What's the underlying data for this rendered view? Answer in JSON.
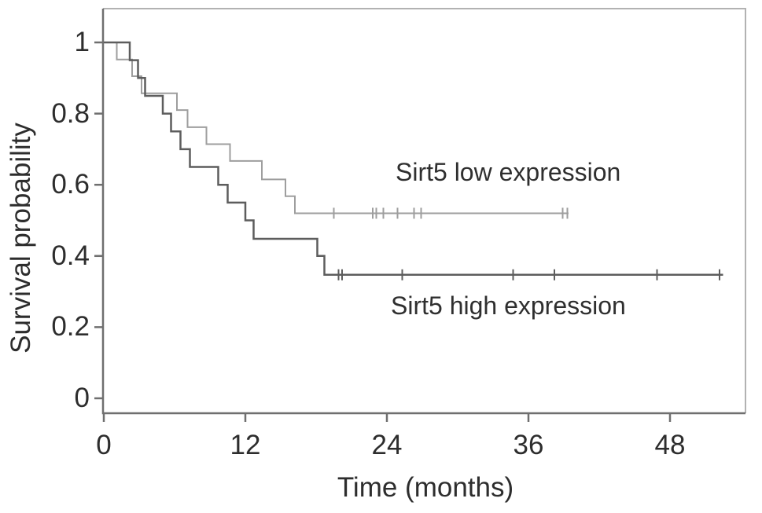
{
  "figure": {
    "x_axis_title": "Time (months)",
    "y_axis_title": "Survival probability",
    "series_label_low": "Sirt5 low expression",
    "series_label_high": "Sirt5 high expression"
  },
  "colors": {
    "background": "#ffffff",
    "frame_light": "#b2b2b2",
    "axis_dark": "#6f6f6f",
    "text": "#2d2d2d",
    "series_low": "#9e9e9e",
    "series_high": "#5d5d5d"
  },
  "chart_data": {
    "type": "line",
    "subtype": "kaplan-meier-step",
    "title": "",
    "xlabel": "Time (months)",
    "ylabel": "Survival probability",
    "xlim": [
      0,
      54.4
    ],
    "ylim": [
      -0.04,
      1.09
    ],
    "xticks": [
      "0",
      "12",
      "24",
      "36",
      "48"
    ],
    "xtick_values": [
      0,
      12,
      24,
      36,
      48
    ],
    "yticks": [
      "0",
      "0.2",
      "0.4",
      "0.6",
      "0.8",
      "1"
    ],
    "ytick_values": [
      0,
      0.2,
      0.4,
      0.6,
      0.8,
      1
    ],
    "grid": false,
    "legend_position": "inline-annotations",
    "series": [
      {
        "name": "Sirt5 low expression",
        "color": "#9e9e9e",
        "line_width": 2,
        "end_time": 39.4,
        "steps": [
          [
            0,
            1.0
          ],
          [
            1.1,
            0.952
          ],
          [
            2.4,
            0.905
          ],
          [
            3.2,
            0.857
          ],
          [
            6.2,
            0.81
          ],
          [
            7.1,
            0.762
          ],
          [
            8.7,
            0.714
          ],
          [
            10.7,
            0.667
          ],
          [
            13.4,
            0.615
          ],
          [
            15.4,
            0.568
          ],
          [
            16.2,
            0.52
          ]
        ],
        "censors": [
          [
            19.5,
            0.52
          ],
          [
            22.8,
            0.52
          ],
          [
            23.1,
            0.52
          ],
          [
            23.7,
            0.52
          ],
          [
            24.9,
            0.52
          ],
          [
            26.3,
            0.52
          ],
          [
            26.9,
            0.52
          ],
          [
            38.9,
            0.52
          ],
          [
            39.3,
            0.52
          ]
        ]
      },
      {
        "name": "Sirt5 high expression",
        "color": "#5d5d5d",
        "line_width": 2.5,
        "end_time": 52.5,
        "steps": [
          [
            0,
            1.0
          ],
          [
            2.2,
            0.95
          ],
          [
            2.9,
            0.9
          ],
          [
            3.5,
            0.85
          ],
          [
            5.0,
            0.8
          ],
          [
            5.7,
            0.75
          ],
          [
            6.5,
            0.7
          ],
          [
            7.3,
            0.65
          ],
          [
            9.7,
            0.6
          ],
          [
            10.5,
            0.55
          ],
          [
            12.0,
            0.5
          ],
          [
            12.7,
            0.448
          ],
          [
            18.1,
            0.4
          ],
          [
            18.7,
            0.347
          ]
        ],
        "censors": [
          [
            19.9,
            0.347
          ],
          [
            20.2,
            0.347
          ],
          [
            25.3,
            0.347
          ],
          [
            34.7,
            0.347
          ],
          [
            38.2,
            0.347
          ],
          [
            46.9,
            0.347
          ],
          [
            52.2,
            0.347
          ]
        ]
      }
    ],
    "annotations": [
      {
        "text": "Sirt5 low expression",
        "target_series": "Sirt5 low expression"
      },
      {
        "text": "Sirt5 high expression",
        "target_series": "Sirt5 high expression"
      }
    ]
  }
}
